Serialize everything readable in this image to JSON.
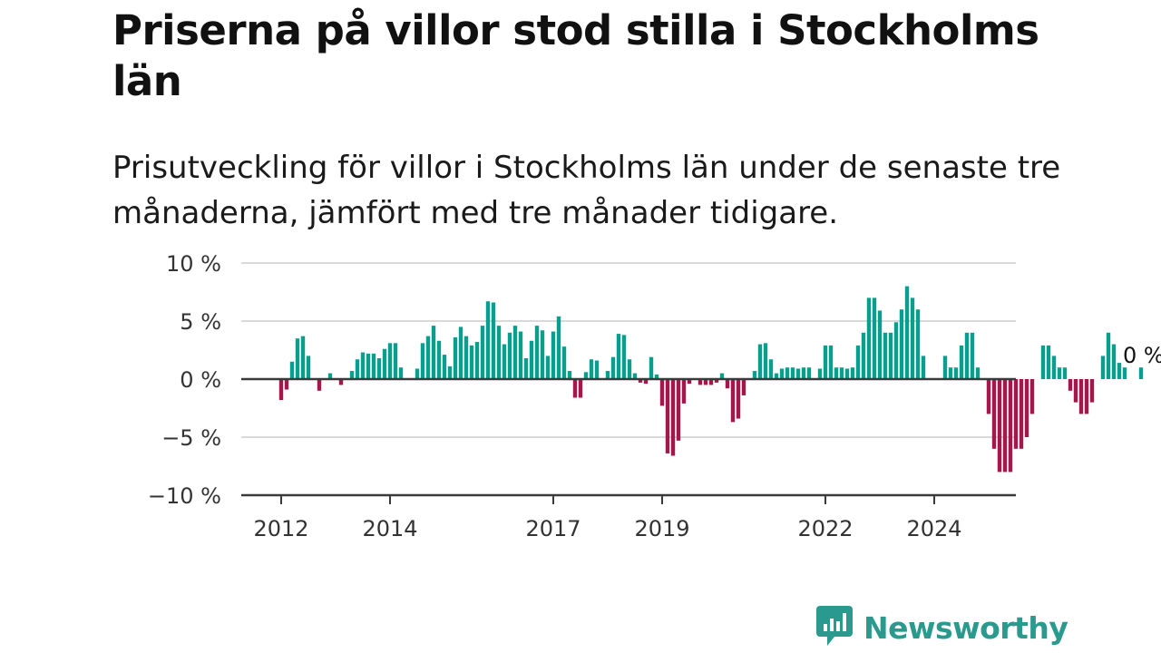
{
  "header": {
    "title": "Priserna på villor stod stilla i Stockholms län",
    "subtitle": "Prisutveckling för villor i Stockholms län under de senaste tre månaderna, jämfört med tre månader tidigare."
  },
  "brand": {
    "name": "Newsworthy",
    "icon": "newsworthy-logo-icon",
    "color": "#2a9a8f"
  },
  "chart_data": {
    "type": "bar",
    "x_start": "2012-01",
    "x_ticks": [
      {
        "label": "2012",
        "month_index": 0
      },
      {
        "label": "2014",
        "month_index": 20
      },
      {
        "label": "2017",
        "month_index": 50
      },
      {
        "label": "2019",
        "month_index": 70
      },
      {
        "label": "2022",
        "month_index": 100
      },
      {
        "label": "2024",
        "month_index": 120
      }
    ],
    "y_ticks": [
      {
        "value": 10,
        "label": "10 %"
      },
      {
        "value": 5,
        "label": "5 %"
      },
      {
        "value": 0,
        "label": "0 %"
      },
      {
        "value": -5,
        "label": "−5 %"
      },
      {
        "value": -10,
        "label": "−10 %"
      }
    ],
    "ylim": [
      -10,
      10
    ],
    "grid": true,
    "colors": {
      "positive": "#0a9e8f",
      "negative": "#a3174d"
    },
    "last_value_label": "0 %",
    "values": [
      -1.8,
      -0.9,
      1.5,
      3.5,
      3.7,
      2.0,
      0,
      -1.0,
      0,
      0.5,
      0,
      -0.5,
      0,
      0.7,
      1.7,
      2.3,
      2.2,
      2.2,
      1.8,
      2.6,
      3.1,
      3.1,
      1.0,
      0,
      0,
      0.9,
      3.1,
      3.7,
      4.6,
      3.3,
      2.1,
      1.1,
      3.6,
      4.5,
      3.7,
      2.9,
      3.2,
      4.6,
      6.7,
      6.6,
      4.6,
      3.0,
      4.0,
      4.6,
      4.1,
      1.8,
      3.3,
      4.6,
      4.2,
      2.0,
      4.1,
      5.4,
      2.8,
      0.7,
      -1.6,
      -1.6,
      0.6,
      1.7,
      1.6,
      0,
      0.7,
      1.9,
      3.9,
      3.8,
      1.7,
      0.5,
      -0.3,
      -0.4,
      1.9,
      0.4,
      -2.3,
      -6.4,
      -6.6,
      -5.3,
      -2.1,
      -0.4,
      0,
      -0.5,
      -0.5,
      -0.5,
      -0.3,
      0.5,
      -0.8,
      -3.7,
      -3.4,
      -1.4,
      0,
      0.7,
      3.0,
      3.1,
      1.7,
      0.5,
      0.9,
      1.0,
      1.0,
      0.9,
      1.0,
      1.0,
      0,
      0.9,
      2.9,
      2.9,
      1.0,
      1.0,
      0.9,
      1.0,
      2.9,
      4.0,
      7.0,
      7.0,
      5.9,
      4.0,
      4.0,
      4.9,
      6.0,
      8.0,
      7.0,
      6.0,
      2.0,
      0,
      0,
      0,
      2.0,
      1.0,
      1.0,
      2.9,
      4.0,
      4.0,
      1.0,
      0,
      -3.0,
      -6.0,
      -8.0,
      -8.0,
      -8.0,
      -6.0,
      -6.0,
      -5.0,
      -3.0,
      0,
      2.9,
      2.9,
      2.0,
      1.0,
      1.0,
      -1.0,
      -2.0,
      -3.0,
      -3.0,
      -2.0,
      0,
      2.0,
      4.0,
      3.0,
      1.4,
      1.0,
      0,
      0,
      1.0,
      0
    ]
  }
}
